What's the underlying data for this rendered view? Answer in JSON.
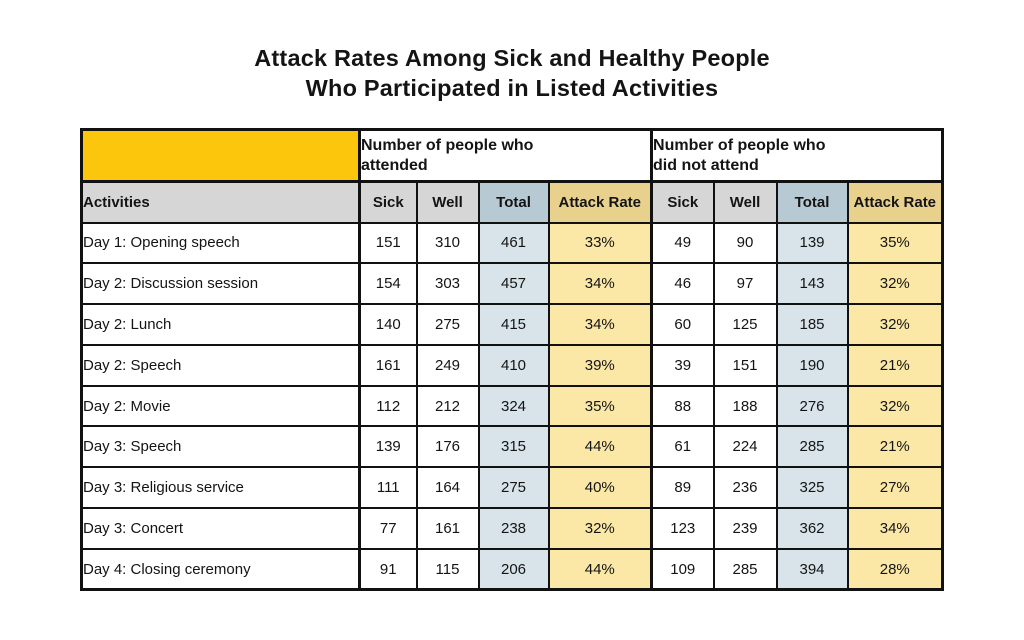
{
  "title": {
    "line1": "Attack Rates Among Sick and Healthy People",
    "line2": "Who Participated in Listed Activities"
  },
  "table": {
    "colors": {
      "corner_yellow": "#FCC60D",
      "header_gray": "#D6D6D6",
      "total_header_blue": "#B7C9D3",
      "rate_header_tan": "#E8D18C",
      "total_cell_blue": "#D8E4EA",
      "rate_cell_yellow": "#FBE8A6",
      "border_black": "#111111"
    },
    "group_headers": {
      "attended": "Number of people who\nattended",
      "not_attended": "Number of people who\ndid not attend"
    },
    "column_headers": {
      "activities": "Activities",
      "sick": "Sick",
      "well": "Well",
      "total": "Total",
      "attack_rate": "Attack Rate"
    },
    "rows": [
      {
        "activity": "Day 1: Opening speech",
        "attended": {
          "sick": "151",
          "well": "310",
          "total": "461",
          "attack_rate": "33%"
        },
        "not_attended": {
          "sick": "49",
          "well": "90",
          "total": "139",
          "attack_rate": "35%"
        }
      },
      {
        "activity": "Day 2: Discussion session",
        "attended": {
          "sick": "154",
          "well": "303",
          "total": "457",
          "attack_rate": "34%"
        },
        "not_attended": {
          "sick": "46",
          "well": "97",
          "total": "143",
          "attack_rate": "32%"
        }
      },
      {
        "activity": "Day 2: Lunch",
        "attended": {
          "sick": "140",
          "well": "275",
          "total": "415",
          "attack_rate": "34%"
        },
        "not_attended": {
          "sick": "60",
          "well": "125",
          "total": "185",
          "attack_rate": "32%"
        }
      },
      {
        "activity": "Day 2: Speech",
        "attended": {
          "sick": "161",
          "well": "249",
          "total": "410",
          "attack_rate": "39%"
        },
        "not_attended": {
          "sick": "39",
          "well": "151",
          "total": "190",
          "attack_rate": "21%"
        }
      },
      {
        "activity": "Day 2: Movie",
        "attended": {
          "sick": "112",
          "well": "212",
          "total": "324",
          "attack_rate": "35%"
        },
        "not_attended": {
          "sick": "88",
          "well": "188",
          "total": "276",
          "attack_rate": "32%"
        }
      },
      {
        "activity": "Day 3: Speech",
        "attended": {
          "sick": "139",
          "well": "176",
          "total": "315",
          "attack_rate": "44%"
        },
        "not_attended": {
          "sick": "61",
          "well": "224",
          "total": "285",
          "attack_rate": "21%"
        }
      },
      {
        "activity": "Day 3: Religious service",
        "attended": {
          "sick": "111",
          "well": "164",
          "total": "275",
          "attack_rate": "40%"
        },
        "not_attended": {
          "sick": "89",
          "well": "236",
          "total": "325",
          "attack_rate": "27%"
        }
      },
      {
        "activity": "Day 3: Concert",
        "attended": {
          "sick": "77",
          "well": "161",
          "total": "238",
          "attack_rate": "32%"
        },
        "not_attended": {
          "sick": "123",
          "well": "239",
          "total": "362",
          "attack_rate": "34%"
        }
      },
      {
        "activity": "Day 4: Closing ceremony",
        "attended": {
          "sick": "91",
          "well": "115",
          "total": "206",
          "attack_rate": "44%"
        },
        "not_attended": {
          "sick": "109",
          "well": "285",
          "total": "394",
          "attack_rate": "28%"
        }
      }
    ]
  },
  "chart_data": {
    "type": "table",
    "title": "Attack Rates Among Sick and Healthy People Who Participated in Listed Activities",
    "column_groups": [
      "",
      "Number of people who attended",
      "Number of people who did not attend"
    ],
    "columns": [
      "Activities",
      "Sick",
      "Well",
      "Total",
      "Attack Rate",
      "Sick",
      "Well",
      "Total",
      "Attack Rate"
    ],
    "rows": [
      [
        "Day 1: Opening speech",
        151,
        310,
        461,
        "33%",
        49,
        90,
        139,
        "35%"
      ],
      [
        "Day 2: Discussion session",
        154,
        303,
        457,
        "34%",
        46,
        97,
        143,
        "32%"
      ],
      [
        "Day 2: Lunch",
        140,
        275,
        415,
        "34%",
        60,
        125,
        185,
        "32%"
      ],
      [
        "Day 2: Speech",
        161,
        249,
        410,
        "39%",
        39,
        151,
        190,
        "21%"
      ],
      [
        "Day 2: Movie",
        112,
        212,
        324,
        "35%",
        88,
        188,
        276,
        "32%"
      ],
      [
        "Day 3: Speech",
        139,
        176,
        315,
        "44%",
        61,
        224,
        285,
        "21%"
      ],
      [
        "Day 3: Religious service",
        111,
        164,
        275,
        "40%",
        89,
        236,
        325,
        "27%"
      ],
      [
        "Day 3: Concert",
        77,
        161,
        238,
        "32%",
        123,
        239,
        362,
        "34%"
      ],
      [
        "Day 4: Closing ceremony",
        91,
        115,
        206,
        "44%",
        109,
        285,
        394,
        "28%"
      ]
    ]
  }
}
